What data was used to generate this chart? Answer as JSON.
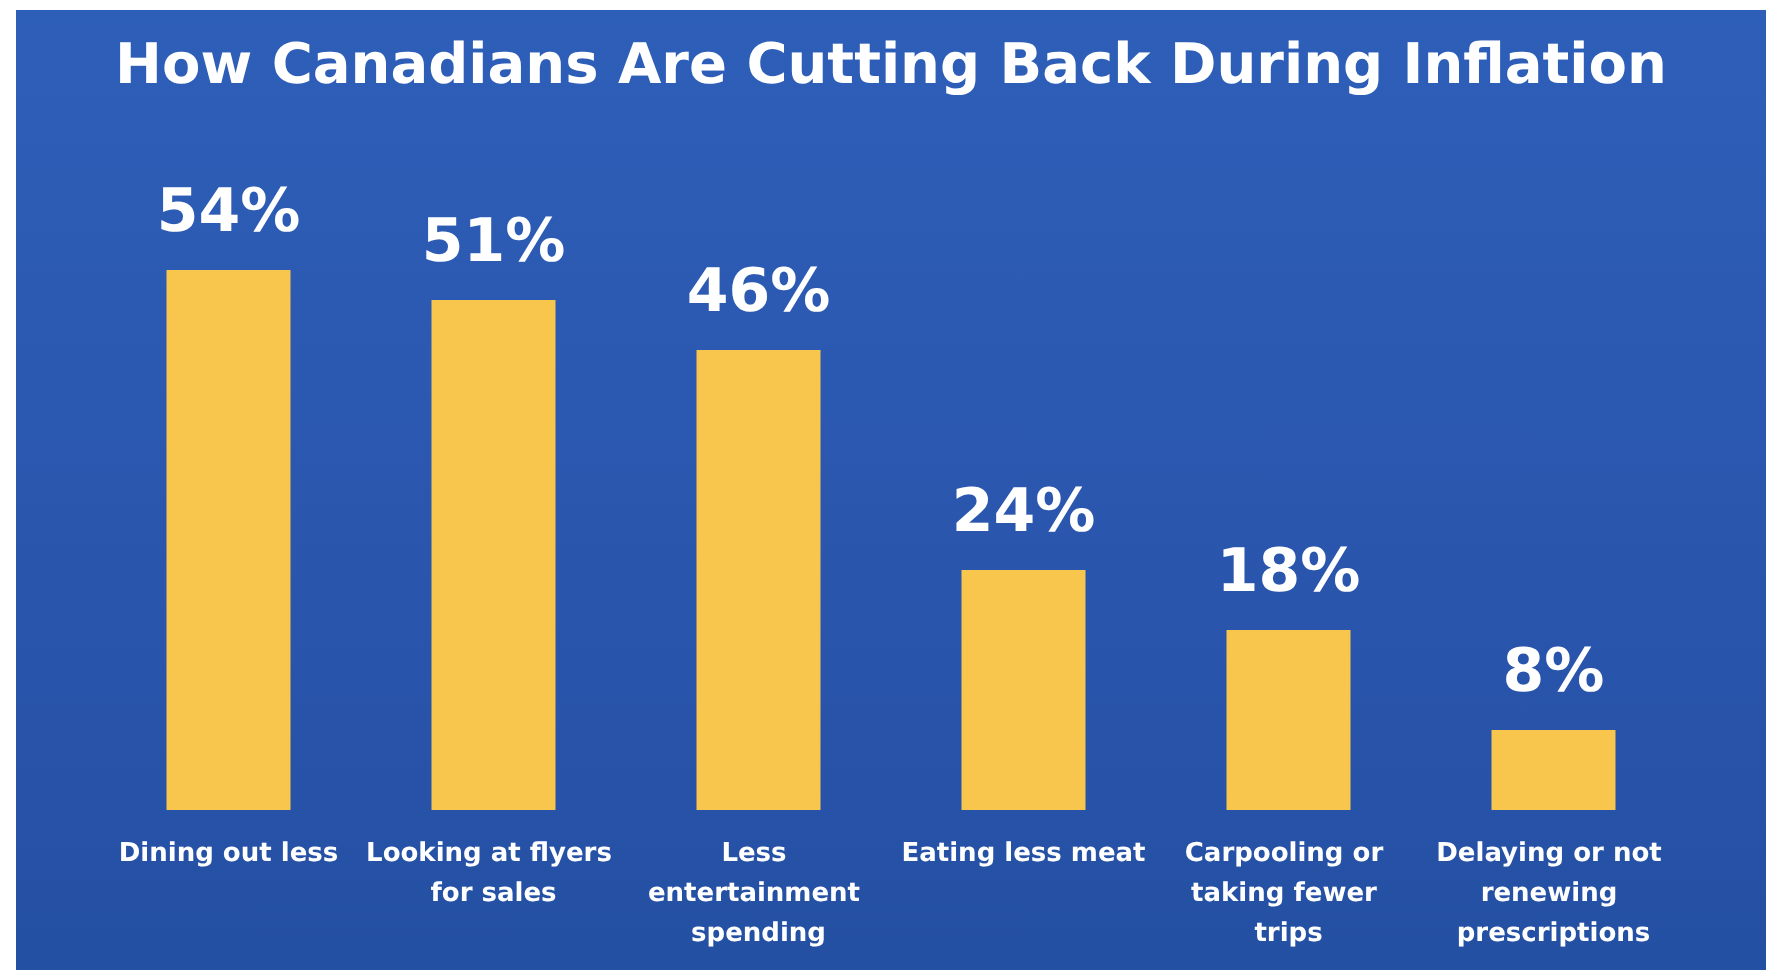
{
  "chart_data": {
    "type": "bar",
    "title": "How Canadians Are Cutting Back During Inflation",
    "categories": [
      "Dining out less",
      "Looking at flyers for sales",
      "Less entertainment spending",
      "Eating less meat",
      "Carpooling or taking fewer trips",
      "Delaying or not renewing prescriptions"
    ],
    "values": [
      54,
      51,
      46,
      24,
      18,
      8
    ],
    "value_labels": [
      "54%",
      "51%",
      "46%",
      "24%",
      "18%",
      "8%"
    ],
    "color": "#f8c64c"
  }
}
